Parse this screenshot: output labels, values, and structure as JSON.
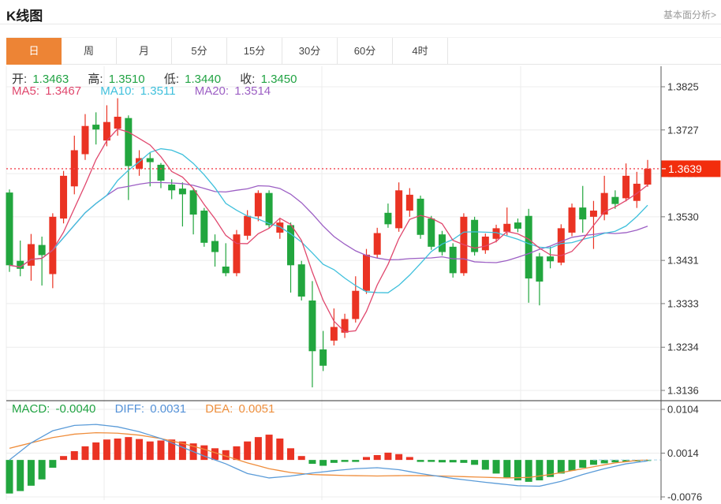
{
  "header": {
    "title": "K线图",
    "link": "基本面分析>"
  },
  "tabs": {
    "items": [
      {
        "label": "日",
        "key": "day",
        "active": true
      },
      {
        "label": "周",
        "key": "week",
        "active": false
      },
      {
        "label": "月",
        "key": "month",
        "active": false
      },
      {
        "label": "5分",
        "key": "5min",
        "active": false
      },
      {
        "label": "15分",
        "key": "15min",
        "active": false
      },
      {
        "label": "30分",
        "key": "30min",
        "active": false
      },
      {
        "label": "60分",
        "key": "60min",
        "active": false
      },
      {
        "label": "4时",
        "key": "4h",
        "active": false
      }
    ]
  },
  "ohlc": {
    "open_label": "开:",
    "open": "1.3463",
    "high_label": "高:",
    "high": "1.3510",
    "low_label": "低:",
    "low": "1.3440",
    "close_label": "收:",
    "close": "1.3450"
  },
  "ma_legend": {
    "ma5_label": "MA5:",
    "ma5": "1.3467",
    "ma10_label": "MA10:",
    "ma10": "1.3511",
    "ma20_label": "MA20:",
    "ma20": "1.3514"
  },
  "macd_legend": {
    "macd_label": "MACD:",
    "macd": "-0.0040",
    "diff_label": "DIFF:",
    "diff": "0.0031",
    "dea_label": "DEA:",
    "dea": "0.0051"
  },
  "price_marker": {
    "label": "1.3639",
    "price": 1.3639
  },
  "colors": {
    "up": "#ea3323",
    "down": "#22a63e",
    "ma5": "#e0476d",
    "ma10": "#3fc0dc",
    "ma20": "#9c5fc4",
    "diff": "#5a9bd8",
    "dea": "#ef8d3b",
    "legend_green": "#21a343",
    "legend_blue": "#5592d8",
    "legend_orange": "#ee8f3d",
    "accent_orange": "#ed8435",
    "marker": "#f22d0d",
    "price_line": "#f4434f",
    "grid": "#ececec",
    "axis": "#555",
    "axis_text": "#333",
    "separator": "#333",
    "zero_dash": "#a8d4e8"
  },
  "chart_data": [
    {
      "type": "candlestick",
      "title": "K线图 (daily K-line with MA5/MA10/MA20)",
      "legend_position": "top-left",
      "grid": true,
      "y_ticks": [
        1.3825,
        1.3727,
        1.3628,
        1.353,
        1.3431,
        1.3333,
        1.3234,
        1.3136
      ],
      "ylim": [
        1.311,
        1.387
      ],
      "current_price": 1.3639,
      "ma_periods": [
        5,
        10,
        20
      ],
      "candles_ohlc": [
        [
          1.3585,
          1.3592,
          1.3405,
          1.342
        ],
        [
          1.343,
          1.3476,
          1.3395,
          1.3412
        ],
        [
          1.3419,
          1.3491,
          1.3385,
          1.3468
        ],
        [
          1.3466,
          1.3485,
          1.3374,
          1.3443
        ],
        [
          1.34,
          1.3538,
          1.3368,
          1.353
        ],
        [
          1.3526,
          1.3634,
          1.3515,
          1.3623
        ],
        [
          1.3599,
          1.3714,
          1.3581,
          1.3681
        ],
        [
          1.3672,
          1.3763,
          1.3659,
          1.3736
        ],
        [
          1.3739,
          1.3767,
          1.3694,
          1.3728
        ],
        [
          1.3703,
          1.3783,
          1.369,
          1.3745
        ],
        [
          1.373,
          1.3799,
          1.3714,
          1.3757
        ],
        [
          1.3754,
          1.376,
          1.3568,
          1.3645
        ],
        [
          1.3639,
          1.3681,
          1.3623,
          1.3663
        ],
        [
          1.3663,
          1.3676,
          1.3599,
          1.3654
        ],
        [
          1.3648,
          1.3652,
          1.3595,
          1.3612
        ],
        [
          1.3603,
          1.3615,
          1.357,
          1.359
        ],
        [
          1.3594,
          1.3608,
          1.3508,
          1.3581
        ],
        [
          1.359,
          1.3595,
          1.349,
          1.3535
        ],
        [
          1.3544,
          1.355,
          1.3462,
          1.3471
        ],
        [
          1.3475,
          1.349,
          1.3417,
          1.345
        ],
        [
          1.3417,
          1.347,
          1.3395,
          1.3402
        ],
        [
          1.3402,
          1.35,
          1.3395,
          1.349
        ],
        [
          1.3487,
          1.3545,
          1.3478,
          1.3532
        ],
        [
          1.3531,
          1.359,
          1.352,
          1.3584
        ],
        [
          1.3584,
          1.359,
          1.3505,
          1.3511
        ],
        [
          1.3494,
          1.3525,
          1.348,
          1.3517
        ],
        [
          1.3511,
          1.3517,
          1.3358,
          1.342
        ],
        [
          1.3422,
          1.343,
          1.334,
          1.3349
        ],
        [
          1.334,
          1.3384,
          1.3143,
          1.3225
        ],
        [
          1.3229,
          1.3271,
          1.318,
          1.3192
        ],
        [
          1.3249,
          1.3322,
          1.3238,
          1.328
        ],
        [
          1.3267,
          1.331,
          1.3255,
          1.3298
        ],
        [
          1.3298,
          1.3395,
          1.329,
          1.3362
        ],
        [
          1.3362,
          1.3457,
          1.3355,
          1.3444
        ],
        [
          1.3444,
          1.3505,
          1.3436,
          1.3493
        ],
        [
          1.3539,
          1.356,
          1.3505,
          1.3513
        ],
        [
          1.3504,
          1.3608,
          1.3496,
          1.359
        ],
        [
          1.3544,
          1.3595,
          1.353,
          1.358
        ],
        [
          1.3571,
          1.3578,
          1.348,
          1.3489
        ],
        [
          1.3526,
          1.3532,
          1.3455,
          1.3462
        ],
        [
          1.349,
          1.3498,
          1.3442,
          1.345
        ],
        [
          1.3462,
          1.347,
          1.3392,
          1.3402
        ],
        [
          1.3402,
          1.3538,
          1.3396,
          1.353
        ],
        [
          1.3523,
          1.353,
          1.3442,
          1.345
        ],
        [
          1.3454,
          1.3492,
          1.3446,
          1.3485
        ],
        [
          1.348,
          1.3512,
          1.3472,
          1.3504
        ],
        [
          1.3496,
          1.3551,
          1.3488,
          1.3514
        ],
        [
          1.3517,
          1.3526,
          1.3495,
          1.3503
        ],
        [
          1.3532,
          1.3548,
          1.3335,
          1.339
        ],
        [
          1.344,
          1.3448,
          1.3329,
          1.3383
        ],
        [
          1.344,
          1.3462,
          1.3413,
          1.3429
        ],
        [
          1.3426,
          1.3513,
          1.342,
          1.3504
        ],
        [
          1.3494,
          1.356,
          1.3486,
          1.3551
        ],
        [
          1.3551,
          1.36,
          1.3494,
          1.3524
        ],
        [
          1.353,
          1.3566,
          1.3457,
          1.3544
        ],
        [
          1.3535,
          1.3623,
          1.3522,
          1.3584
        ],
        [
          1.3575,
          1.359,
          1.3548,
          1.3559
        ],
        [
          1.3572,
          1.3651,
          1.3565,
          1.3623
        ],
        [
          1.3566,
          1.3632,
          1.355,
          1.3605
        ],
        [
          1.3603,
          1.3659,
          1.3598,
          1.3639
        ]
      ]
    },
    {
      "type": "bar",
      "title": "MACD (histogram with DIFF / DEA lines)",
      "y_ticks": [
        0.0104,
        0.0014,
        -0.0076
      ],
      "ylim": [
        -0.0085,
        0.0122
      ],
      "hist": [
        -0.0069,
        -0.0064,
        -0.0053,
        -0.004,
        -0.0016,
        0.0008,
        0.0018,
        0.0028,
        0.0036,
        0.0042,
        0.0044,
        0.0047,
        0.0043,
        0.0038,
        0.004,
        0.0042,
        0.0038,
        0.0034,
        0.003,
        0.0024,
        0.002,
        0.0028,
        0.0038,
        0.0047,
        0.0052,
        0.0044,
        0.0024,
        0.0008,
        -0.0008,
        -0.0012,
        -0.0006,
        -0.0004,
        -0.0004,
        0.0006,
        0.001,
        0.0015,
        0.0012,
        0.0006,
        -0.0004,
        -0.0004,
        -0.0005,
        -0.0005,
        -0.0006,
        -0.001,
        -0.002,
        -0.0028,
        -0.0036,
        -0.0042,
        -0.0045,
        -0.0042,
        -0.0035,
        -0.0028,
        -0.0022,
        -0.0016,
        -0.001,
        -0.0007,
        -0.0005,
        -0.0004,
        -0.0003,
        -0.0002
      ],
      "diff_points": [
        [
          0,
          0.0
        ],
        [
          2,
          0.0035
        ],
        [
          4,
          0.006
        ],
        [
          6,
          0.0071
        ],
        [
          8,
          0.0073
        ],
        [
          10,
          0.0068
        ],
        [
          12,
          0.0058
        ],
        [
          14,
          0.0044
        ],
        [
          16,
          0.0026
        ],
        [
          18,
          0.0008
        ],
        [
          20,
          -0.0008
        ],
        [
          22,
          -0.0028
        ],
        [
          24,
          -0.0037
        ],
        [
          26,
          -0.0033
        ],
        [
          28,
          -0.0027
        ],
        [
          30,
          -0.0022
        ],
        [
          32,
          -0.0018
        ],
        [
          34,
          -0.0016
        ],
        [
          36,
          -0.002
        ],
        [
          38,
          -0.0028
        ],
        [
          41,
          -0.0038
        ],
        [
          44,
          -0.0046
        ],
        [
          47,
          -0.0053
        ],
        [
          49,
          -0.0054
        ],
        [
          51,
          -0.0044
        ],
        [
          53,
          -0.003
        ],
        [
          55,
          -0.0018
        ],
        [
          57,
          -0.0008
        ],
        [
          59,
          -0.0002
        ]
      ],
      "dea_points": [
        [
          0,
          0.0024
        ],
        [
          2,
          0.0035
        ],
        [
          4,
          0.0046
        ],
        [
          6,
          0.0053
        ],
        [
          8,
          0.0056
        ],
        [
          10,
          0.0055
        ],
        [
          12,
          0.0051
        ],
        [
          14,
          0.0044
        ],
        [
          16,
          0.0034
        ],
        [
          18,
          0.0022
        ],
        [
          20,
          0.0008
        ],
        [
          22,
          -0.0006
        ],
        [
          24,
          -0.0018
        ],
        [
          26,
          -0.0026
        ],
        [
          28,
          -0.003
        ],
        [
          31,
          -0.0032
        ],
        [
          34,
          -0.0033
        ],
        [
          37,
          -0.0032
        ],
        [
          40,
          -0.0033
        ],
        [
          43,
          -0.0035
        ],
        [
          46,
          -0.0037
        ],
        [
          48,
          -0.0036
        ],
        [
          50,
          -0.003
        ],
        [
          52,
          -0.0022
        ],
        [
          54,
          -0.0014
        ],
        [
          56,
          -0.0006
        ],
        [
          58,
          -0.0001
        ],
        [
          59,
          0.0
        ]
      ]
    }
  ]
}
